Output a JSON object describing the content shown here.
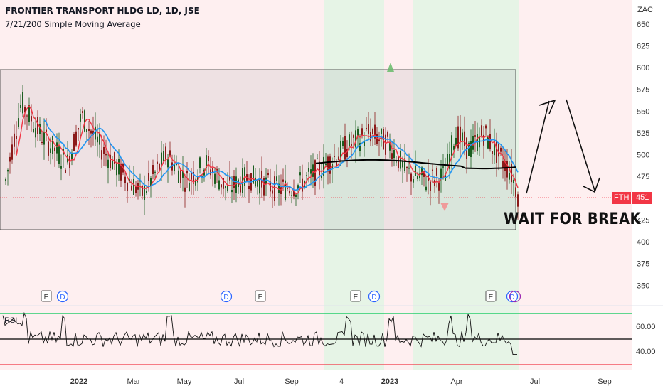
{
  "header": {
    "title": "FRONTIER TRANSPORT HLDG LD, 1D, JSE",
    "indicator": "7/21/200 Simple Moving Average",
    "currency": "ZAC"
  },
  "annotation": {
    "text": "WAIT FOR BREAK"
  },
  "price_tag": {
    "symbol": "FTH",
    "value": "451"
  },
  "rsi_label": "RSI",
  "event_markers": [
    "E",
    "D",
    "D",
    "E",
    "E",
    "D",
    "E",
    "D"
  ],
  "colors": {
    "candle_up": "#1b5e20",
    "candle_down": "#8b1a1a",
    "sma7": "#f23645",
    "sma21": "#2196f3",
    "sma200": "#000000",
    "box_fill": "rgba(120,120,140,0.12)",
    "bull_zone": "rgba(76,175,80,0.14)",
    "bear_zone": "rgba(242,54,69,0.08)",
    "rsi_upper": "#00c853",
    "rsi_lower": "#f23645"
  },
  "chart_data": {
    "type": "candlestick",
    "x_axis": {
      "ticks": [
        "2022",
        "Mar",
        "May",
        "Jul",
        "Sep",
        "4",
        "2023",
        "Apr",
        "Jul",
        "Sep"
      ]
    },
    "y_axis": {
      "ticks": [
        650,
        625,
        600,
        575,
        550,
        525,
        500,
        475,
        450,
        425,
        400,
        375,
        350
      ],
      "range": [
        330,
        660
      ],
      "scale": "linear"
    },
    "consolidation_range": {
      "top": 598,
      "bottom": 415
    },
    "sma200_level": 490,
    "last_price": 451,
    "rsi": {
      "ticks": [
        "60.00",
        "40.00"
      ],
      "upper_band": 70,
      "mid": 50,
      "lower_band": 30,
      "last": 38
    }
  }
}
